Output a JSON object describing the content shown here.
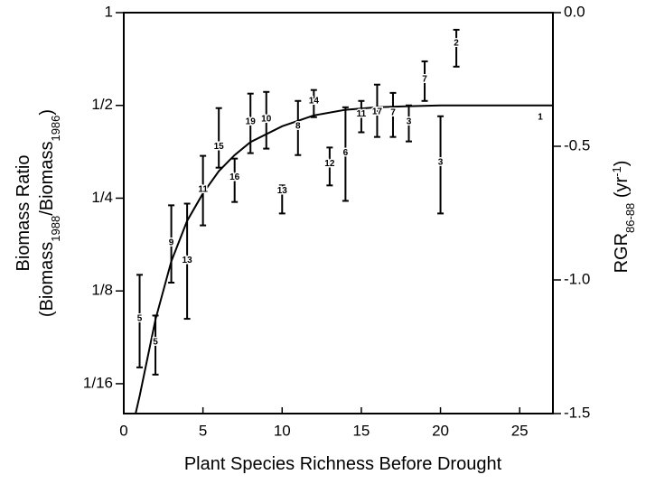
{
  "chart_data": {
    "type": "scatter",
    "x_label": "Plant Species Richness Before Drought",
    "y_label": [
      [
        {
          "text": "Biomass Ratio"
        }
      ],
      [
        {
          "text": "(Biomass"
        },
        {
          "text": "1988",
          "shift": "sub"
        },
        {
          "text": "/Biomass"
        },
        {
          "text": "1986",
          "shift": "sub"
        },
        {
          "text": ")"
        }
      ]
    ],
    "y2_label": [
      {
        "text": "RGR"
      },
      {
        "text": "86-88",
        "shift": "sub"
      },
      {
        "text": " (yr"
      },
      {
        "text": "-1",
        "shift": "super"
      },
      {
        "text": ")"
      }
    ],
    "xlim": [
      0,
      27.1
    ],
    "xticks": [
      0,
      5,
      10,
      15,
      20,
      25
    ],
    "ylim": [
      0.05,
      1
    ],
    "yscale": "log2",
    "yticks": [
      1,
      {
        "value": 0.5,
        "label": "1/2"
      },
      {
        "value": 0.25,
        "label": "1/4"
      },
      {
        "value": 0.125,
        "label": "1/8"
      },
      {
        "value": 0.0625,
        "label": "1/16"
      }
    ],
    "y2lim": [
      -1.5,
      0
    ],
    "y2ticks": [
      {
        "value": 0,
        "label": "0.0"
      },
      {
        "value": -0.5,
        "label": "-0.5"
      },
      {
        "value": -1,
        "label": "-1.0"
      },
      {
        "value": -1.5,
        "label": "-1.5"
      }
    ],
    "series": [
      {
        "color": "#000000",
        "x": [
          1,
          2,
          3,
          4,
          5,
          6,
          7,
          8,
          9,
          10,
          11,
          12,
          13,
          14,
          15,
          16,
          17,
          18,
          19,
          20,
          21,
          26.3
        ],
        "values": [
          0.1015,
          0.0852,
          0.179,
          0.157,
          0.267,
          0.367,
          0.292,
          0.443,
          0.452,
          0.264,
          0.428,
          0.517,
          0.323,
          0.35,
          0.468,
          0.477,
          0.474,
          0.443,
          0.608,
          0.327,
          0.795,
          0.458
        ],
        "lower": [
          0.0706,
          0.0669,
          0.133,
          0.1015,
          0.204,
          0.314,
          0.243,
          0.35,
          0.362,
          0.223,
          0.345,
          0.458,
          0.275,
          0.245,
          0.409,
          0.395,
          0.395,
          0.382,
          0.517,
          0.223,
          0.668,
          null
        ],
        "upper": [
          0.141,
          0.104,
          0.237,
          0.24,
          0.343,
          0.49,
          0.336,
          0.546,
          0.553,
          0.275,
          0.517,
          0.561,
          0.365,
          0.493,
          0.517,
          0.584,
          0.549,
          0.5,
          0.695,
          0.461,
          0.88,
          null
        ],
        "labels": [
          "5",
          "5",
          "9",
          "13",
          "11",
          "15",
          "16",
          "19",
          "10",
          "13",
          "8",
          "14",
          "12",
          "6",
          "11",
          "17",
          "7",
          "3",
          "7",
          "3",
          "2",
          "1"
        ]
      }
    ],
    "fit": {
      "color": "#000000",
      "x": [
        0.75,
        1,
        2,
        3,
        4,
        5,
        6,
        7,
        8,
        10,
        12,
        14,
        16,
        18,
        20,
        27.1
      ],
      "values": [
        0.05,
        0.0569,
        0.101,
        0.156,
        0.211,
        0.259,
        0.306,
        0.345,
        0.38,
        0.428,
        0.464,
        0.484,
        0.493,
        0.497,
        0.5,
        0.5
      ]
    }
  }
}
